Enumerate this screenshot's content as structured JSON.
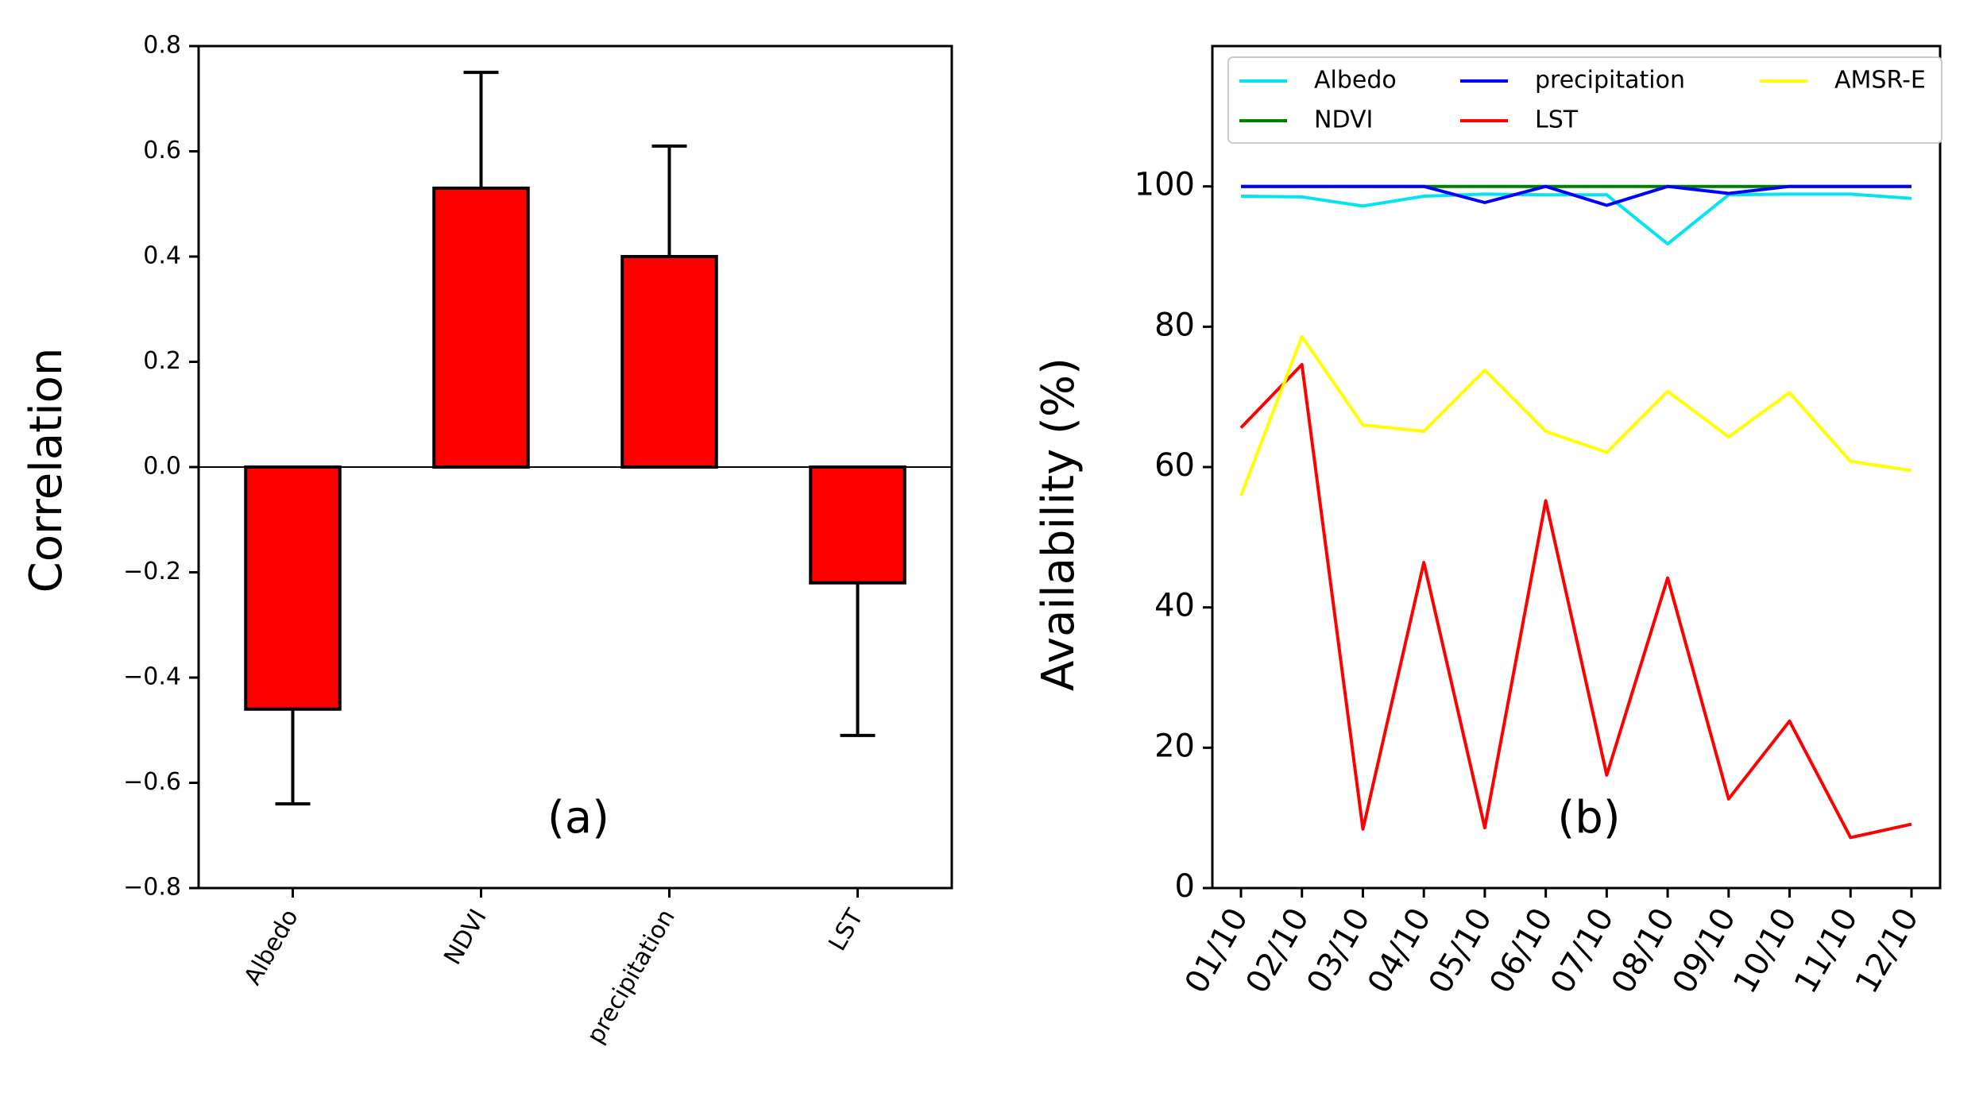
{
  "chart_data": [
    {
      "type": "bar",
      "panel_label": "(a)",
      "ylabel": "Correlation",
      "xlabel": "",
      "categories": [
        "Albedo",
        "NDVI",
        "precipitation",
        "LST"
      ],
      "values": [
        -0.46,
        0.53,
        0.4,
        -0.22
      ],
      "error_bars": [
        0.18,
        0.22,
        0.21,
        0.29
      ],
      "error_direction": "away-from-zero",
      "ylim": [
        -0.8,
        0.8
      ],
      "yticks": [
        -0.8,
        -0.6,
        -0.4,
        -0.2,
        0.0,
        0.2,
        0.4,
        0.6,
        0.8
      ],
      "ytick_labels": [
        "−0.8",
        "−0.6",
        "−0.4",
        "−0.2",
        "0.0",
        "0.2",
        "0.4",
        "0.6",
        "0.8"
      ],
      "bar_color": "#ff0000",
      "zero_line": true,
      "grid": false
    },
    {
      "type": "line",
      "panel_label": "(b)",
      "ylabel": "Availability (%)",
      "xlabel": "",
      "x": [
        "01/10",
        "02/10",
        "03/10",
        "04/10",
        "05/10",
        "06/10",
        "07/10",
        "08/10",
        "09/10",
        "10/10",
        "11/10",
        "12/10"
      ],
      "ylim": [
        0,
        120
      ],
      "yticks": [
        0,
        20,
        40,
        60,
        80,
        100
      ],
      "ytick_labels": [
        "0",
        "20",
        "40",
        "60",
        "80",
        "100"
      ],
      "legend_position": "top",
      "grid": false,
      "series": [
        {
          "name": "Albedo",
          "color": "#00e5ee",
          "values": [
            98.6,
            98.5,
            97.2,
            98.6,
            98.9,
            98.8,
            98.8,
            91.8,
            98.8,
            98.9,
            98.9,
            98.3
          ]
        },
        {
          "name": "NDVI",
          "color": "#008000",
          "values": [
            100,
            100,
            100,
            100,
            100,
            100,
            100,
            100,
            100,
            100,
            100,
            100
          ]
        },
        {
          "name": "precipitation",
          "color": "#0000ff",
          "values": [
            100,
            100,
            100,
            100,
            97.7,
            100,
            97.3,
            100,
            99,
            100,
            100,
            100
          ]
        },
        {
          "name": "LST",
          "color": "#ff0000",
          "values": [
            65.6,
            74.6,
            8.4,
            46.4,
            8.6,
            55.2,
            16.1,
            44.2,
            12.7,
            23.8,
            7.2,
            9.1
          ]
        },
        {
          "name": "AMSR-E",
          "color": "#ffff00",
          "values": [
            55.9,
            78.6,
            66.0,
            65.1,
            73.8,
            65.1,
            62.1,
            70.8,
            64.3,
            70.6,
            60.8,
            59.5
          ]
        }
      ]
    }
  ]
}
